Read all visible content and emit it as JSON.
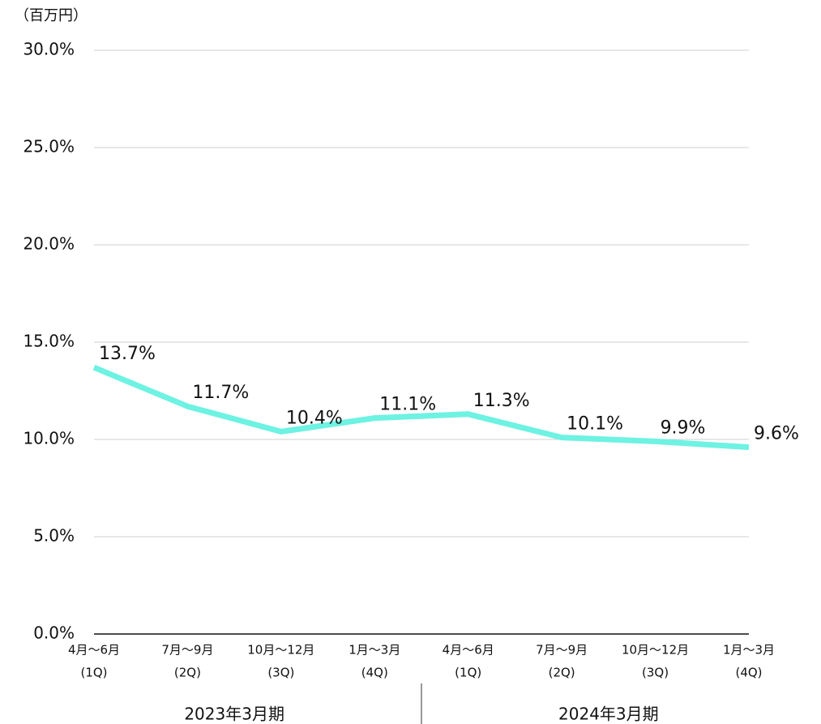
{
  "chart_data": {
    "type": "line",
    "unit": "（百万円）",
    "categories": [
      [
        "4月〜6月",
        "(1Q)"
      ],
      [
        "7月〜9月",
        "(2Q)"
      ],
      [
        "10月〜12月",
        "(3Q)"
      ],
      [
        "1月〜3月",
        "(4Q)"
      ],
      [
        "4月〜6月",
        "(1Q)"
      ],
      [
        "7月〜9月",
        "(2Q)"
      ],
      [
        "10月〜12月",
        "(3Q)"
      ],
      [
        "1月〜3月",
        "(4Q)"
      ]
    ],
    "groups": [
      "2023年3月期",
      "2024年3月期"
    ],
    "values": [
      13.7,
      11.7,
      10.4,
      11.1,
      11.3,
      10.1,
      9.9,
      9.6
    ],
    "value_labels": [
      "13.7%",
      "11.7%",
      "10.4%",
      "11.1%",
      "11.3%",
      "10.1%",
      "9.9%",
      "9.6%"
    ],
    "color": "#6ef2e2",
    "ylim": [
      0,
      30
    ],
    "yticks": [
      {
        "value": 0,
        "label": "0.0%"
      },
      {
        "value": 5,
        "label": "5.0%"
      },
      {
        "value": 10,
        "label": "10.0%"
      },
      {
        "value": 15,
        "label": "15.0%"
      },
      {
        "value": 20,
        "label": "20.0%"
      },
      {
        "value": 25,
        "label": "25.0%"
      },
      {
        "value": 30,
        "label": "30.0%"
      }
    ],
    "grid": true
  }
}
